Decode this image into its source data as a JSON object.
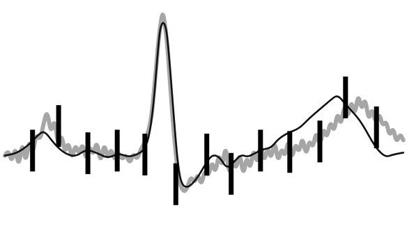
{
  "chart_data": {
    "type": "line",
    "title": "",
    "xlabel": "",
    "ylabel": "",
    "grid": false,
    "legend": "none",
    "xlim": [
      0,
      1
    ],
    "ylim": [
      -0.2,
      1.0
    ],
    "colors": {
      "raw": "#a6a6a6",
      "smooth": "#111111",
      "markers": "#000000",
      "background": "#ffffff"
    },
    "series": [
      {
        "role": "raw",
        "x": [
          0.012,
          0.021,
          0.029,
          0.038,
          0.046,
          0.055,
          0.063,
          0.072,
          0.08,
          0.089,
          0.099,
          0.108,
          0.116,
          0.125,
          0.134,
          0.143,
          0.151,
          0.16,
          0.168,
          0.177,
          0.185,
          0.194,
          0.203,
          0.212,
          0.22,
          0.229,
          0.238,
          0.247,
          0.256,
          0.265,
          0.273,
          0.282,
          0.291,
          0.3,
          0.31,
          0.319,
          0.328,
          0.337,
          0.346,
          0.354,
          0.363,
          0.372,
          0.378,
          0.384,
          0.389,
          0.395,
          0.4,
          0.405,
          0.411,
          0.416,
          0.421,
          0.428,
          0.435,
          0.443,
          0.452,
          0.46,
          0.469,
          0.478,
          0.486,
          0.495,
          0.503,
          0.512,
          0.521,
          0.529,
          0.538,
          0.546,
          0.555,
          0.563,
          0.572,
          0.58,
          0.589,
          0.598,
          0.606,
          0.615,
          0.623,
          0.632,
          0.64,
          0.649,
          0.658,
          0.666,
          0.675,
          0.683,
          0.692,
          0.7,
          0.709,
          0.717,
          0.726,
          0.735,
          0.743,
          0.752,
          0.76,
          0.769,
          0.777,
          0.786,
          0.795,
          0.803,
          0.812,
          0.821,
          0.829,
          0.838,
          0.846,
          0.855,
          0.863,
          0.872,
          0.88,
          0.889,
          0.897,
          0.906,
          0.914,
          0.923,
          0.932,
          0.94,
          0.949,
          0.957,
          0.966,
          0.974,
          0.983,
          0.991
        ],
        "y": [
          0.206,
          0.233,
          0.171,
          0.254,
          0.144,
          0.282,
          0.164,
          0.295,
          0.206,
          0.322,
          0.288,
          0.386,
          0.445,
          0.322,
          0.404,
          0.253,
          0.322,
          0.219,
          0.281,
          0.185,
          0.267,
          0.212,
          0.274,
          0.178,
          0.261,
          0.206,
          0.288,
          0.164,
          0.274,
          0.185,
          0.247,
          0.178,
          0.226,
          0.185,
          0.212,
          0.164,
          0.219,
          0.185,
          0.24,
          0.267,
          0.322,
          0.404,
          0.541,
          0.678,
          0.808,
          0.911,
          0.966,
          0.904,
          0.794,
          0.651,
          0.496,
          0.308,
          0.151,
          0.048,
          0.014,
          0.034,
          0.096,
          0.062,
          0.11,
          0.048,
          0.13,
          0.096,
          0.178,
          0.11,
          0.219,
          0.144,
          0.267,
          0.096,
          0.192,
          0.13,
          0.226,
          0.096,
          0.206,
          0.13,
          0.247,
          0.158,
          0.274,
          0.171,
          0.253,
          0.185,
          0.288,
          0.171,
          0.247,
          0.199,
          0.295,
          0.185,
          0.274,
          0.219,
          0.308,
          0.206,
          0.288,
          0.247,
          0.336,
          0.253,
          0.356,
          0.295,
          0.391,
          0.329,
          0.438,
          0.363,
          0.479,
          0.404,
          0.5,
          0.418,
          0.534,
          0.445,
          0.514,
          0.39,
          0.459,
          0.377,
          0.431,
          0.363,
          0.39,
          0.308,
          0.356,
          0.274,
          0.322,
          0.288
        ]
      },
      {
        "role": "smoothed",
        "x": [
          0.012,
          0.041,
          0.07,
          0.096,
          0.11,
          0.134,
          0.158,
          0.185,
          0.212,
          0.24,
          0.265,
          0.291,
          0.315,
          0.337,
          0.356,
          0.368,
          0.378,
          0.386,
          0.392,
          0.397,
          0.403,
          0.409,
          0.414,
          0.421,
          0.428,
          0.436,
          0.445,
          0.462,
          0.483,
          0.504,
          0.521,
          0.54,
          0.557,
          0.574,
          0.592,
          0.608,
          0.627,
          0.645,
          0.666,
          0.684,
          0.709,
          0.735,
          0.76,
          0.786,
          0.812,
          0.829,
          0.846,
          0.863,
          0.88,
          0.897,
          0.914,
          0.932,
          0.949,
          0.966,
          0.991
        ],
        "y": [
          0.206,
          0.219,
          0.261,
          0.322,
          0.336,
          0.267,
          0.219,
          0.199,
          0.24,
          0.219,
          0.192,
          0.219,
          0.199,
          0.212,
          0.24,
          0.322,
          0.493,
          0.712,
          0.856,
          0.904,
          0.911,
          0.87,
          0.767,
          0.582,
          0.384,
          0.178,
          0.055,
          0.034,
          0.082,
          0.158,
          0.212,
          0.199,
          0.137,
          0.171,
          0.212,
          0.199,
          0.219,
          0.24,
          0.247,
          0.295,
          0.329,
          0.349,
          0.404,
          0.452,
          0.5,
          0.528,
          0.486,
          0.445,
          0.404,
          0.349,
          0.281,
          0.226,
          0.199,
          0.212,
          0.222
        ]
      }
    ],
    "markers": {
      "x": [
        0.08,
        0.144,
        0.216,
        0.288,
        0.356,
        0.432,
        0.508,
        0.568,
        0.64,
        0.712,
        0.786,
        0.849,
        0.925
      ],
      "y": [
        0.233,
        0.363,
        0.219,
        0.233,
        0.212,
        0.055,
        0.212,
        0.11,
        0.233,
        0.226,
        0.281,
        0.514,
        0.356
      ]
    }
  }
}
